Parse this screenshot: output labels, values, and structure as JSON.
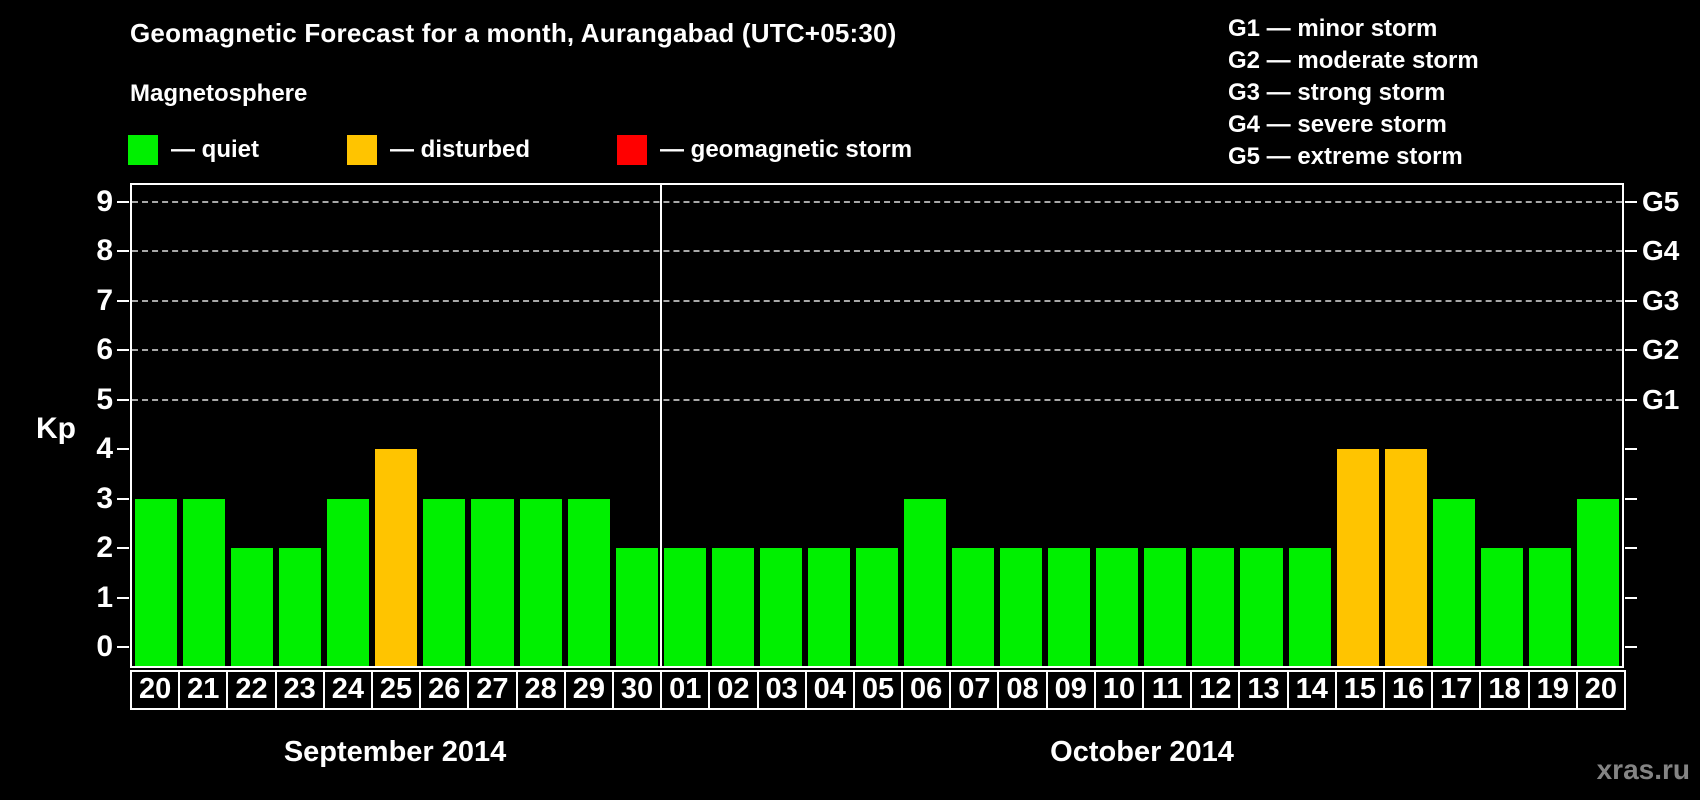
{
  "header": {
    "title": "Geomagnetic Forecast for a month, Aurangabad (UTC+05:30)",
    "subtitle": "Magnetosphere"
  },
  "legend": {
    "items": [
      {
        "label": "— quiet",
        "status": "quiet",
        "color": "#00f000"
      },
      {
        "label": "— disturbed",
        "status": "disturbed",
        "color": "#ffc400"
      },
      {
        "label": "— geomagnetic storm",
        "status": "storm",
        "color": "#ff0000"
      }
    ]
  },
  "storm_scale": {
    "lines": [
      "G1 — minor storm",
      "G2 — moderate storm",
      "G3 — strong storm",
      "G4 — severe storm",
      "G5 — extreme storm"
    ]
  },
  "colors": {
    "quiet": "#00f000",
    "disturbed": "#ffc400",
    "storm": "#ff0000",
    "axis": "#ffffff",
    "grid": "#a8a8a8",
    "background": "#000000",
    "watermark_text": "#848484"
  },
  "chart_data": {
    "type": "bar",
    "title": "Geomagnetic Forecast for a month, Aurangabad (UTC+05:30)",
    "xlabel": "",
    "ylabel": "Kp",
    "ylim": [
      0,
      9
    ],
    "grid": "dashed horizontal at Kp 5-9",
    "left_ticks": [
      0,
      1,
      2,
      3,
      4,
      5,
      6,
      7,
      8,
      9
    ],
    "right_axis_labels": [
      {
        "text": "G1",
        "kp": 5
      },
      {
        "text": "G2",
        "kp": 6
      },
      {
        "text": "G3",
        "kp": 7
      },
      {
        "text": "G4",
        "kp": 8
      },
      {
        "text": "G5",
        "kp": 9
      }
    ],
    "months": [
      {
        "label": "September 2014",
        "days": [
          "20",
          "21",
          "22",
          "23",
          "24",
          "25",
          "26",
          "27",
          "28",
          "29",
          "30"
        ],
        "values": [
          3,
          3,
          2,
          2,
          3,
          4,
          3,
          3,
          3,
          3,
          2
        ],
        "status": [
          "quiet",
          "quiet",
          "quiet",
          "quiet",
          "quiet",
          "disturbed",
          "quiet",
          "quiet",
          "quiet",
          "quiet",
          "quiet"
        ]
      },
      {
        "label": "October 2014",
        "days": [
          "01",
          "02",
          "03",
          "04",
          "05",
          "06",
          "07",
          "08",
          "09",
          "10",
          "11",
          "12",
          "13",
          "14",
          "15",
          "16",
          "17",
          "18",
          "19",
          "20"
        ],
        "values": [
          2,
          2,
          2,
          2,
          2,
          3,
          2,
          2,
          2,
          2,
          2,
          2,
          2,
          2,
          4,
          4,
          3,
          2,
          2,
          3
        ],
        "status": [
          "quiet",
          "quiet",
          "quiet",
          "quiet",
          "quiet",
          "quiet",
          "quiet",
          "quiet",
          "quiet",
          "quiet",
          "quiet",
          "quiet",
          "quiet",
          "quiet",
          "disturbed",
          "disturbed",
          "quiet",
          "quiet",
          "quiet",
          "quiet"
        ]
      }
    ]
  },
  "watermark": "xras.ru"
}
